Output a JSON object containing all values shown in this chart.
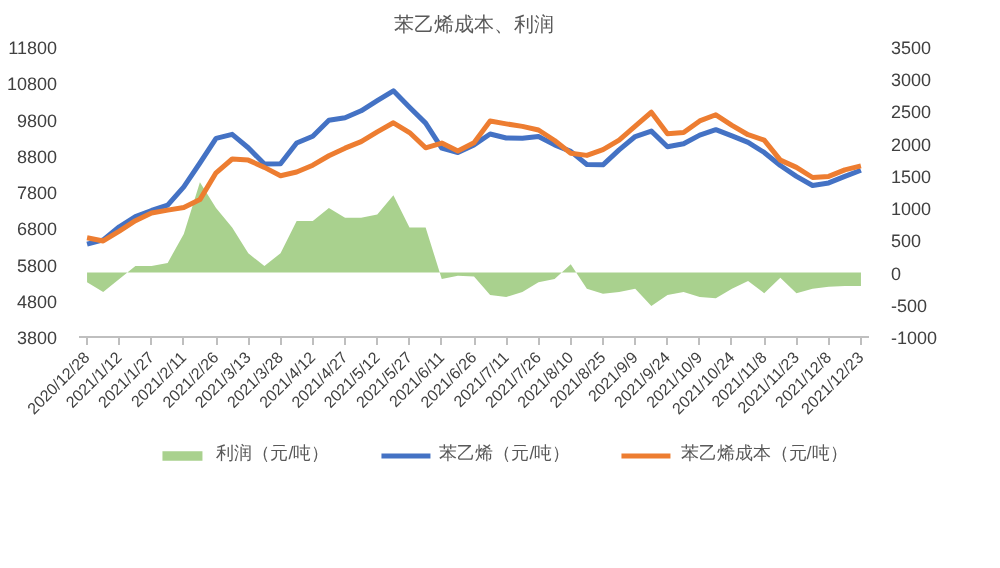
{
  "chart_data": {
    "type": "line",
    "title": "苯乙烯成本、利润",
    "categories": [
      "2020/12/28",
      null,
      "2021/1/12",
      null,
      "2021/1/27",
      null,
      "2021/2/11",
      null,
      "2021/2/26",
      null,
      "2021/3/13",
      null,
      "2021/3/28",
      null,
      "2021/4/12",
      null,
      "2021/4/27",
      null,
      "2021/5/12",
      null,
      "2021/5/27",
      null,
      "2021/6/11",
      null,
      "2021/6/26",
      null,
      "2021/7/11",
      null,
      "2021/7/26",
      null,
      "2021/8/10",
      null,
      "2021/8/25",
      null,
      "2021/9/9",
      null,
      "2021/9/24",
      null,
      "2021/10/9",
      null,
      "2021/10/24",
      null,
      "2021/11/8",
      null,
      "2021/11/23",
      null,
      "2021/12/8",
      null,
      "2021/12/23"
    ],
    "series": [
      {
        "name": "利润（元/吨）",
        "type": "area",
        "axis": "y2",
        "color": "#a9d18e",
        "values": [
          -150,
          -300,
          -100,
          100,
          100,
          150,
          600,
          1400,
          1000,
          700,
          300,
          100,
          300,
          800,
          800,
          1000,
          850,
          850,
          900,
          1200,
          700,
          700,
          -100,
          -50,
          -60,
          -350,
          -380,
          -300,
          -150,
          -100,
          130,
          -250,
          -330,
          -300,
          -250,
          -520,
          -350,
          -300,
          -380,
          -400,
          -250,
          -130,
          -320,
          -80,
          -320,
          -250,
          -220,
          -210,
          -210
        ]
      },
      {
        "name": "苯乙烯（元/吨）",
        "color": "#4472c4",
        "values": [
          6360,
          6480,
          6840,
          7120,
          7290,
          7440,
          7940,
          8600,
          9280,
          9390,
          9020,
          8570,
          8580,
          9150,
          9340,
          9780,
          9850,
          10040,
          10320,
          10590,
          10140,
          9700,
          9010,
          8890,
          9100,
          9400,
          9290,
          9280,
          9330,
          9100,
          8920,
          8560,
          8550,
          8960,
          9330,
          9480,
          9050,
          9130,
          9370,
          9520,
          9350,
          9170,
          8890,
          8530,
          8230,
          7980,
          8050,
          8230,
          8400
        ]
      },
      {
        "name": "苯乙烯成本（元/吨）",
        "color": "#ed7d31",
        "values": [
          6540,
          6450,
          6720,
          7010,
          7220,
          7300,
          7370,
          7590,
          8330,
          8710,
          8680,
          8480,
          8250,
          8350,
          8540,
          8800,
          9010,
          9190,
          9460,
          9710,
          9440,
          9020,
          9150,
          8930,
          9160,
          9760,
          9680,
          9610,
          9510,
          9220,
          8870,
          8810,
          8970,
          9230,
          9620,
          10000,
          9410,
          9440,
          9760,
          9930,
          9640,
          9380,
          9230,
          8680,
          8480,
          8200,
          8230,
          8410,
          8520
        ]
      }
    ],
    "ylim": [
      3800,
      11800
    ],
    "yticks": [
      3800,
      4800,
      5800,
      6800,
      7800,
      8800,
      9800,
      10800,
      11800
    ],
    "y2lim": [
      -1000,
      3500
    ],
    "y2ticks": [
      -1000,
      -500,
      0,
      500,
      1000,
      1500,
      2000,
      2500,
      3000,
      3500
    ],
    "grid": false,
    "legend": "bottom"
  }
}
